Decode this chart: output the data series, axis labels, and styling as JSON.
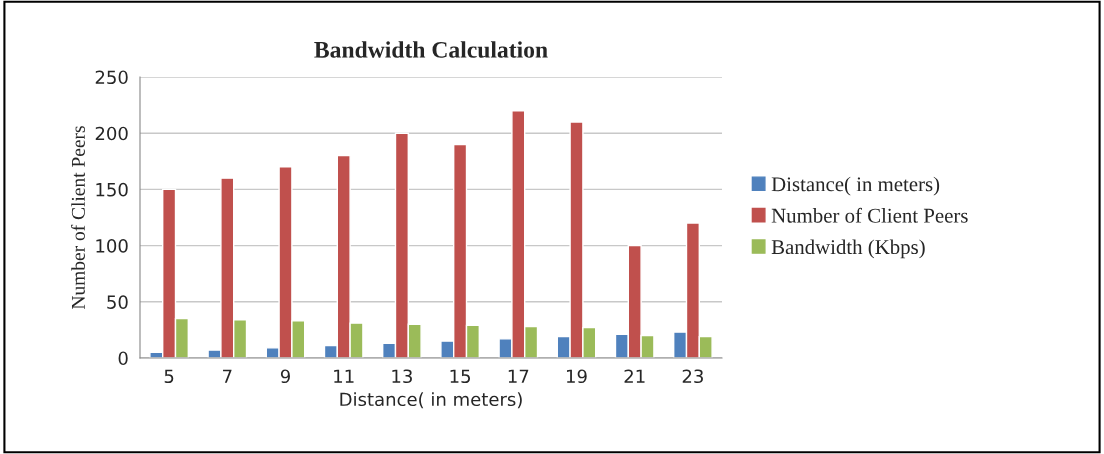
{
  "chart_data": {
    "type": "bar",
    "title": "Bandwidth Calculation",
    "xlabel": "Distance( in meters)",
    "ylabel": "Number of Client Peers",
    "categories": [
      "5",
      "7",
      "9",
      "11",
      "13",
      "15",
      "17",
      "19",
      "21",
      "23"
    ],
    "series": [
      {
        "name": "Distance( in meters)",
        "color": "#4f81bd",
        "values": [
          5,
          7,
          9,
          11,
          13,
          15,
          17,
          19,
          21,
          23
        ]
      },
      {
        "name": "Number of Client Peers",
        "color": "#c0504d",
        "values": [
          150,
          160,
          170,
          180,
          200,
          190,
          220,
          210,
          100,
          120
        ]
      },
      {
        "name": "Bandwidth (Kbps)",
        "color": "#9bbb59",
        "values": [
          35,
          34,
          33,
          31,
          30,
          29,
          28,
          27,
          20,
          19
        ]
      }
    ],
    "ylim": [
      0,
      250
    ],
    "yticks": [
      0,
      50,
      100,
      150,
      200,
      250
    ],
    "grid": "y",
    "legend": "right"
  }
}
